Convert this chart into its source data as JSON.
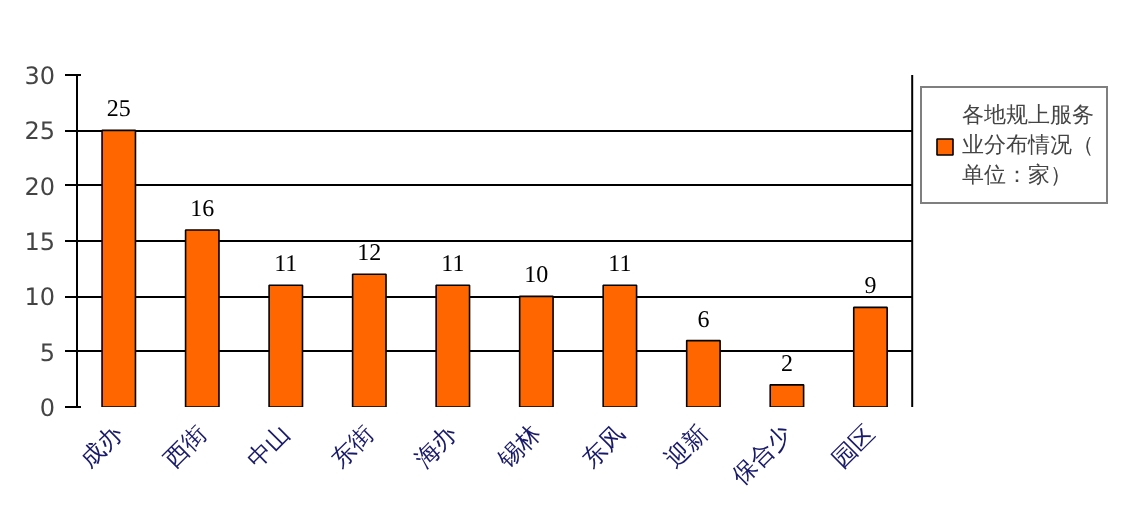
{
  "chart_data": {
    "type": "bar",
    "categories": [
      "成办",
      "西街",
      "中山",
      "东街",
      "海办",
      "锡林",
      "东风",
      "迎新",
      "保合少",
      "园区"
    ],
    "series": [
      {
        "name": "各地规上服务业分布情况（单位：家）",
        "color": "#ff6600",
        "values": [
          25,
          16,
          11,
          12,
          11,
          10,
          11,
          6,
          2,
          9
        ]
      }
    ],
    "ylim": [
      0,
      30
    ],
    "yticks": [
      0,
      5,
      10,
      15,
      20,
      25,
      30
    ],
    "grid": "y",
    "legend": "right",
    "data_labels": true
  }
}
